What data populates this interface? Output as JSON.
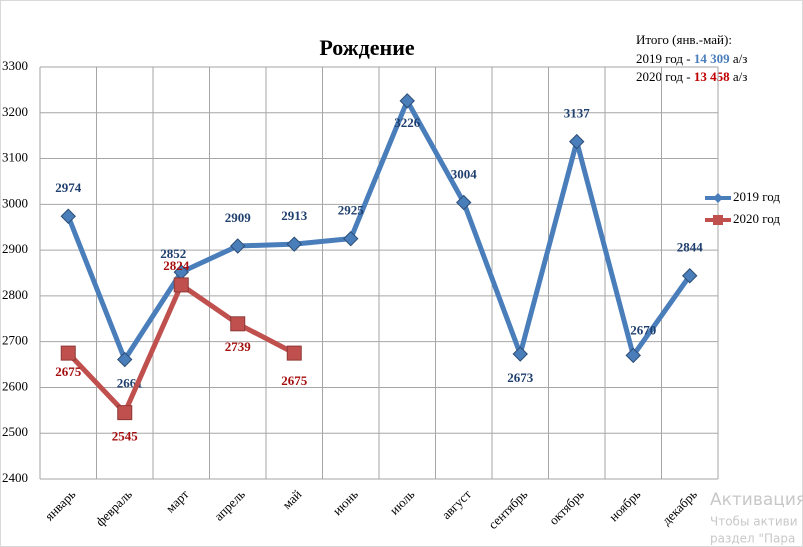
{
  "chart_data": {
    "type": "line",
    "title": "Рождение",
    "categories": [
      "январь",
      "февраль",
      "март",
      "апрель",
      "май",
      "июнь",
      "июль",
      "август",
      "сентябрь",
      "октябрь",
      "ноябрь",
      "декабрь"
    ],
    "series": [
      {
        "name": "2019 год",
        "color": "#4a7ebb",
        "label_color": "#1f3f6e",
        "values": [
          2974,
          2661,
          2852,
          2909,
          2913,
          2925,
          3226,
          3004,
          2673,
          3137,
          2670,
          2844
        ]
      },
      {
        "name": "2020 год",
        "color": "#c0504d",
        "label_color": "#a50f0f",
        "values": [
          2675,
          2545,
          2824,
          2739,
          2675,
          null,
          null,
          null,
          null,
          null,
          null,
          null
        ]
      }
    ],
    "ylim": [
      2400,
      3300
    ],
    "yticks": [
      2400,
      2500,
      2600,
      2700,
      2800,
      2900,
      3000,
      3100,
      3200,
      3300
    ],
    "grid": true,
    "annotation": {
      "title": "Итого (янв.-май):",
      "lines": [
        {
          "prefix": "2019 год - ",
          "value": "14 309",
          "suffix": " а/з"
        },
        {
          "prefix": "2020 год - ",
          "value": "13 458",
          "suffix": " а/з"
        }
      ]
    },
    "watermark": [
      "Активация",
      "Чтобы активи",
      "раздел \"Пара"
    ]
  }
}
